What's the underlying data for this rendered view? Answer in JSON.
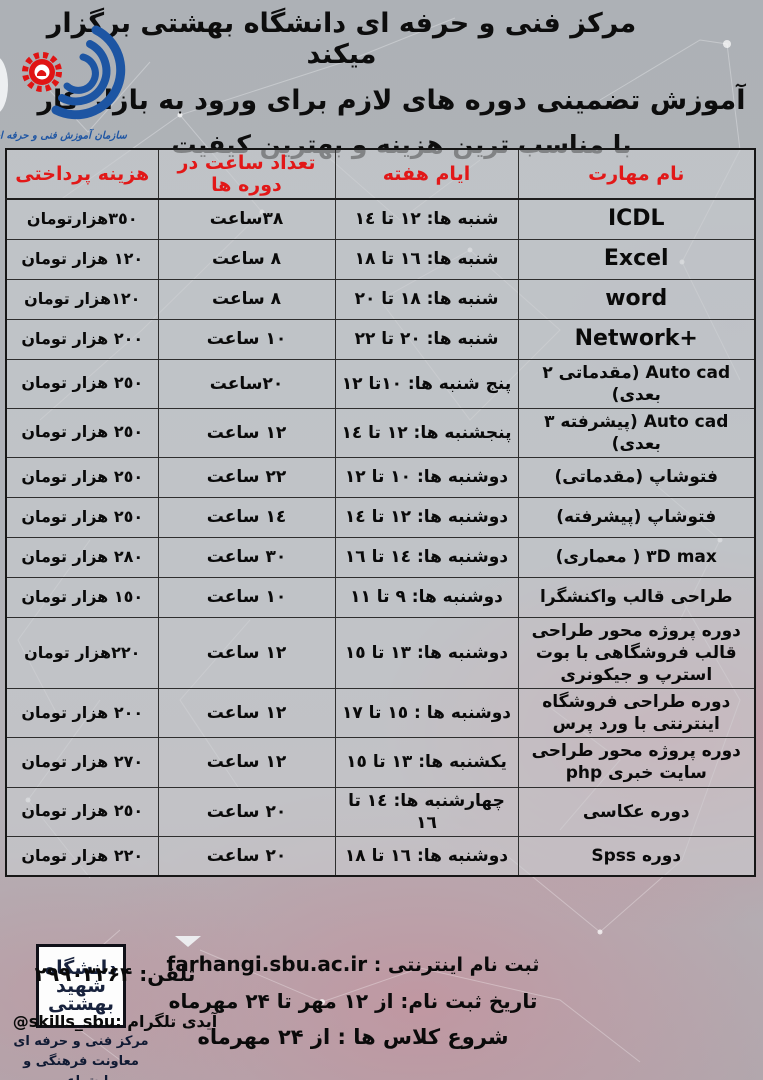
{
  "colors": {
    "accent_red": "#e21818",
    "logo_blue": "#1d55a3",
    "gear_red": "#e01414",
    "navy": "#18223d",
    "background_gray": "#b0b3b8",
    "background_pink": "#c08593"
  },
  "header": {
    "title_line1": "مرکز فنی و حرفه ای دانشگاه بهشتی برگزار میکند",
    "title_line2": "آموزش تضمینی دوره های لازم برای ورود به بازار کار",
    "title_line3": "با مناسب ترین هزینه و بهترین کیفیت",
    "tvto_logo_caption": "سازمان آموزش فنی و حرفه ای کشور"
  },
  "table": {
    "columns": [
      "نام مهارت",
      "ایام هفته",
      "تعداد ساعت در دوره ها",
      "هزینه پرداختی"
    ],
    "rows": [
      {
        "name": "ICDL",
        "days": "شنبه ها: ١٢ تا ١٤",
        "hours": "٣٨ساعت",
        "cost": "٣٥٠هزارتومان"
      },
      {
        "name": "Excel",
        "days": "شنبه ها: ١٦ تا ١٨",
        "hours": "٨ ساعت",
        "cost": "١٢٠ هزار تومان"
      },
      {
        "name": "word",
        "days": "شنبه ها: ١٨ تا ٢٠",
        "hours": "٨ ساعت",
        "cost": "١٢٠هزار تومان"
      },
      {
        "name": "Network+",
        "days": "شنبه ها: ٢٠ تا ٢٢",
        "hours": "١٠ ساعت",
        "cost": "٢٠٠ هزار تومان"
      },
      {
        "name": "Auto cad (مقدماتی ٢ بعدی)",
        "days": "پنج شنبه ها: ١٠تا ١٢",
        "hours": "٢٠ساعت",
        "cost": "٢٥٠ هزار تومان"
      },
      {
        "name": "Auto cad (پیشرفته ٣ بعدی)",
        "days": "پنجشنبه ها: ١٢ تا ١٤",
        "hours": "١٢ ساعت",
        "cost": "٢٥٠ هزار تومان"
      },
      {
        "name": "فتوشاپ (مقدماتی)",
        "days": "دوشنبه ها: ١٠ تا ١٢",
        "hours": "٢٢ ساعت",
        "cost": "٢٥٠ هزار تومان"
      },
      {
        "name": "فتوشاپ (پیشرفته)",
        "days": "دوشنبه ها: ١٢ تا ١٤",
        "hours": "١٤ ساعت",
        "cost": "٢٥٠ هزار تومان"
      },
      {
        "name": "٣D max ( معماری)",
        "days": "دوشنبه ها: ١٤ تا ١٦",
        "hours": "٣٠ ساعت",
        "cost": "٢٨٠ هزار تومان"
      },
      {
        "name": "طراحی قالب واکنشگرا",
        "days": "دوشنبه ها: ٩ تا ١١",
        "hours": "١٠ ساعت",
        "cost": "١٥٠ هزار تومان"
      },
      {
        "name": "دوره پروژه محور طراحی قالب فروشگاهی با بوت استرپ و جیکونری",
        "days": "دوشنبه ها: ١٣ تا ١٥",
        "hours": "١٢ ساعت",
        "cost": "٢٢٠هزار تومان"
      },
      {
        "name": "دوره طراحی فروشگاه اینترنتی با ورد پرس",
        "days": "دوشنبه ها : ١٥ تا ١٧",
        "hours": "١٢ ساعت",
        "cost": "٢٠٠ هزار تومان"
      },
      {
        "name": "دوره پروژه محور طراحی سایت خبری php",
        "days": "یکشنبه ها: ١٣ تا ١٥",
        "hours": "١٢ ساعت",
        "cost": "٢٧٠ هزار تومان"
      },
      {
        "name": "دوره عکاسی",
        "days": "چهارشنبه ها: ١٤ تا ١٦",
        "hours": "٢٠ ساعت",
        "cost": "٢٥٠ هزار تومان"
      },
      {
        "name": "دوره Spss",
        "days": "دوشنبه ها: ١٦ تا ١٨",
        "hours": "٢٠ ساعت",
        "cost": "٢٢٠ هزار تومان"
      }
    ]
  },
  "footer": {
    "registration_label": "ثبت نام اینترنتی :",
    "registration_url": "farhangi.sbu.ac.ir",
    "registration_dates": "تاریخ ثبت نام: از ۱۲ مهر تا ۲۴ مهرماه",
    "classes_start": "شروع کلاس ها : از ۲۴ مهرماه",
    "phone_label": "تلفن:",
    "phone_number": "۲۹۹۰۳۲۶۴",
    "telegram_label": "آیدی تلگرام :",
    "telegram_id": "@skills_sbu",
    "sbu_logo_word1": "دانشگاه",
    "sbu_logo_word2": "شهید",
    "sbu_logo_word3": "بهشتی",
    "org_line1": "مرکز فنی و حرفه ای",
    "org_line2": "معاونت فرهنگی و اجتماعی"
  }
}
